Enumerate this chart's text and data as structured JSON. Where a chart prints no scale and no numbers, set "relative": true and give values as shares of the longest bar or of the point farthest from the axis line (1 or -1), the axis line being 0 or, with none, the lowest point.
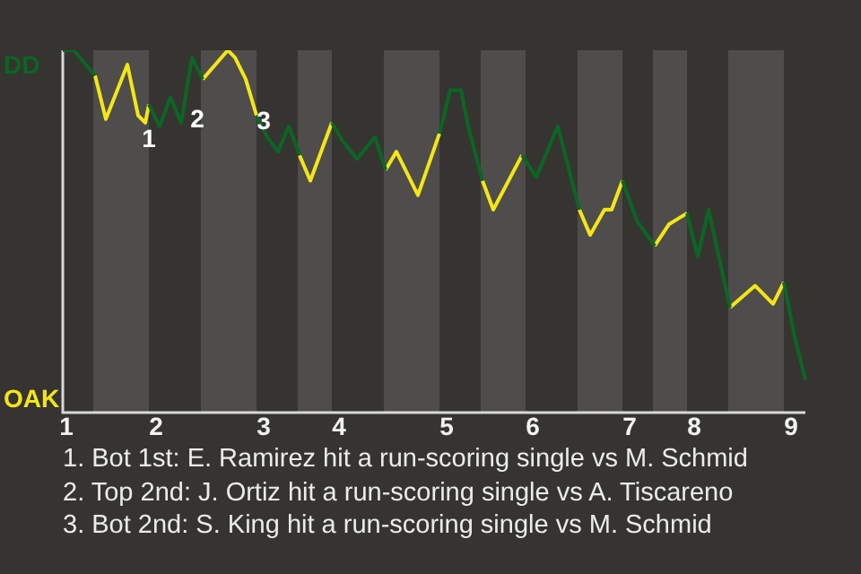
{
  "chart_data": {
    "type": "line",
    "relative": true,
    "categories": [
      null,
      "1",
      null,
      null,
      null,
      null,
      null,
      null,
      null,
      null,
      null,
      null,
      null,
      null,
      null,
      null,
      null,
      null,
      null,
      null,
      null,
      null,
      null,
      null,
      null,
      null,
      "2",
      null,
      null,
      null,
      null,
      null,
      null,
      null,
      null,
      null,
      null,
      null,
      null,
      null,
      null,
      null,
      null,
      null,
      null,
      null,
      null,
      null,
      null,
      null,
      null,
      null,
      null,
      null,
      null,
      null,
      "3",
      null,
      null,
      null,
      null,
      null,
      null,
      null,
      null,
      null,
      null,
      null,
      null,
      null,
      null,
      null,
      null,
      null,
      null,
      null,
      null,
      "4",
      null,
      null,
      null,
      null,
      null,
      null,
      null,
      null,
      null,
      null,
      null,
      null,
      null,
      null,
      null,
      null,
      null,
      null,
      null,
      null,
      null,
      null,
      null,
      null,
      null,
      null,
      null,
      null,
      null,
      "5",
      null,
      null,
      null,
      null,
      null,
      null,
      null,
      null,
      null,
      null,
      null,
      null,
      null,
      null,
      null,
      null,
      null,
      null,
      null,
      null,
      null,
      null,
      null,
      "6",
      null,
      null,
      null,
      null,
      null,
      null,
      null,
      null,
      null,
      null,
      null,
      null,
      null,
      null,
      null,
      null,
      null,
      null,
      null,
      null,
      null,
      null,
      null,
      null,
      null,
      null,
      "7",
      null,
      null,
      null,
      null,
      null,
      null,
      null,
      null,
      null,
      null,
      null,
      null,
      null,
      null,
      null,
      null,
      null,
      "8",
      null,
      null,
      null,
      null,
      null,
      null,
      null,
      null,
      null,
      null,
      null,
      null,
      null,
      null,
      null,
      null,
      null,
      null,
      null,
      null,
      null,
      null,
      null,
      null,
      null,
      null,
      "9",
      null,
      null,
      null,
      null
    ],
    "series": [
      {
        "color": "#0b6623",
        "values": [
          1,
          null,
          null,
          1,
          null,
          null,
          null,
          null,
          null,
          0.93,
          null,
          null,
          null,
          null,
          null,
          null,
          null,
          null,
          null,
          null,
          null,
          null,
          null,
          null,
          0.85,
          null,
          null,
          0.79,
          null,
          null,
          0.87,
          null,
          null,
          0.8,
          null,
          null,
          0.98,
          null,
          null,
          0.92,
          null,
          null,
          null,
          null,
          null,
          null,
          null,
          null,
          null,
          null,
          null,
          null,
          null,
          null,
          0.82,
          null,
          null,
          0.76,
          null,
          null,
          0.72,
          null,
          null,
          0.79,
          null,
          null,
          0.71,
          null,
          null,
          null,
          null,
          null,
          null,
          null,
          null,
          0.8,
          null,
          null,
          0.75,
          null,
          null,
          null,
          0.7,
          null,
          null,
          null,
          null,
          0.76,
          null,
          null,
          0.67,
          null,
          null,
          null,
          null,
          null,
          null,
          null,
          null,
          null,
          null,
          null,
          null,
          null,
          null,
          0.77,
          null,
          null,
          0.89,
          null,
          null,
          0.89,
          null,
          0.79,
          null,
          null,
          null,
          0.64,
          null,
          null,
          null,
          null,
          null,
          null,
          null,
          null,
          null,
          null,
          0.71,
          null,
          null,
          null,
          0.65,
          null,
          null,
          null,
          null,
          null,
          0.79,
          null,
          null,
          null,
          null,
          null,
          0.56,
          null,
          null,
          null,
          null,
          null,
          null,
          null,
          null,
          null,
          null,
          null,
          0.64,
          null,
          null,
          null,
          0.53,
          null,
          null,
          null,
          null,
          0.46,
          null,
          null,
          null,
          null,
          null,
          null,
          null,
          null,
          0.55,
          null,
          null,
          0.43,
          null,
          null,
          0.56,
          null,
          null,
          null,
          null,
          null,
          0.29,
          null,
          null,
          null,
          null,
          null,
          null,
          null,
          null,
          null,
          null,
          null,
          null,
          null,
          null,
          0.36,
          null,
          null,
          0.21,
          null,
          null,
          0.09
        ]
      },
      {
        "color": "#f5e614",
        "values": [
          null,
          null,
          null,
          null,
          null,
          null,
          null,
          null,
          null,
          0.93,
          null,
          null,
          0.81,
          null,
          null,
          null,
          null,
          null,
          0.96,
          null,
          null,
          0.82,
          null,
          0.8,
          0.85,
          null,
          null,
          null,
          null,
          null,
          null,
          null,
          null,
          null,
          null,
          null,
          null,
          null,
          null,
          0.92,
          null,
          null,
          null,
          null,
          null,
          null,
          1,
          null,
          0.98,
          null,
          null,
          0.92,
          null,
          null,
          0.82,
          null,
          null,
          null,
          null,
          null,
          null,
          null,
          null,
          null,
          null,
          null,
          0.71,
          null,
          null,
          0.64,
          null,
          null,
          null,
          null,
          null,
          0.8,
          null,
          null,
          null,
          null,
          null,
          null,
          null,
          null,
          null,
          null,
          null,
          null,
          null,
          null,
          0.67,
          null,
          null,
          0.72,
          null,
          null,
          null,
          null,
          null,
          0.6,
          null,
          null,
          null,
          null,
          null,
          0.77,
          null,
          null,
          null,
          null,
          null,
          null,
          null,
          null,
          null,
          null,
          null,
          0.64,
          null,
          null,
          0.56,
          null,
          null,
          null,
          null,
          null,
          null,
          null,
          0.71,
          null,
          null,
          null,
          null,
          null,
          null,
          null,
          null,
          null,
          null,
          null,
          null,
          null,
          null,
          null,
          0.56,
          null,
          null,
          0.49,
          null,
          null,
          null,
          0.56,
          null,
          0.56,
          null,
          null,
          0.64,
          null,
          null,
          null,
          null,
          null,
          null,
          null,
          null,
          0.46,
          null,
          null,
          null,
          0.52,
          null,
          null,
          null,
          null,
          0.55,
          null,
          null,
          null,
          null,
          null,
          null,
          null,
          null,
          null,
          null,
          null,
          0.29,
          null,
          null,
          null,
          null,
          null,
          null,
          0.35,
          null,
          null,
          null,
          null,
          0.3,
          null,
          null,
          0.36,
          null,
          null,
          null,
          null,
          null,
          null
        ]
      }
    ],
    "annotations": [
      "1",
      "2",
      "3",
      "DD",
      "OAK",
      "1. Bot 1st: E. Ramirez hit a run-scoring single vs M. Schmid",
      "2. Top 2nd: J. Ortiz hit a run-scoring single vs A. Tiscareno",
      "3. Bot 2nd: S. King hit a run-scoring single vs M. Schmid"
    ]
  }
}
